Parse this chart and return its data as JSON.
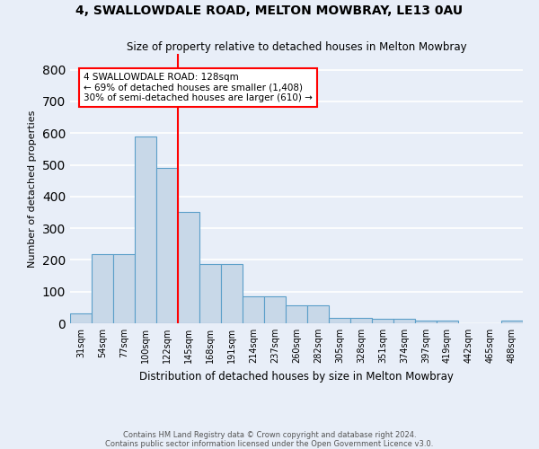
{
  "title1": "4, SWALLOWDALE ROAD, MELTON MOWBRAY, LE13 0AU",
  "title2": "Size of property relative to detached houses in Melton Mowbray",
  "xlabel": "Distribution of detached houses by size in Melton Mowbray",
  "ylabel": "Number of detached properties",
  "categories": [
    "31sqm",
    "54sqm",
    "77sqm",
    "100sqm",
    "122sqm",
    "145sqm",
    "168sqm",
    "191sqm",
    "214sqm",
    "237sqm",
    "260sqm",
    "282sqm",
    "305sqm",
    "328sqm",
    "351sqm",
    "374sqm",
    "397sqm",
    "419sqm",
    "442sqm",
    "465sqm",
    "488sqm"
  ],
  "values": [
    32,
    218,
    218,
    590,
    490,
    350,
    188,
    188,
    84,
    84,
    57,
    57,
    18,
    18,
    13,
    13,
    8,
    8,
    0,
    0,
    8
  ],
  "bar_color": "#c8d8e8",
  "bar_edge_color": "#5b9fc9",
  "vline_x": 4.5,
  "vline_color": "red",
  "annotation_text": "4 SWALLOWDALE ROAD: 128sqm\n← 69% of detached houses are smaller (1,408)\n30% of semi-detached houses are larger (610) →",
  "annotation_box_color": "white",
  "annotation_box_edge": "red",
  "footer": "Contains HM Land Registry data © Crown copyright and database right 2024.\nContains public sector information licensed under the Open Government Licence v3.0.",
  "ylim": [
    0,
    850
  ],
  "yticks": [
    0,
    100,
    200,
    300,
    400,
    500,
    600,
    700,
    800
  ],
  "background_color": "#e8eef8",
  "grid_color": "white"
}
